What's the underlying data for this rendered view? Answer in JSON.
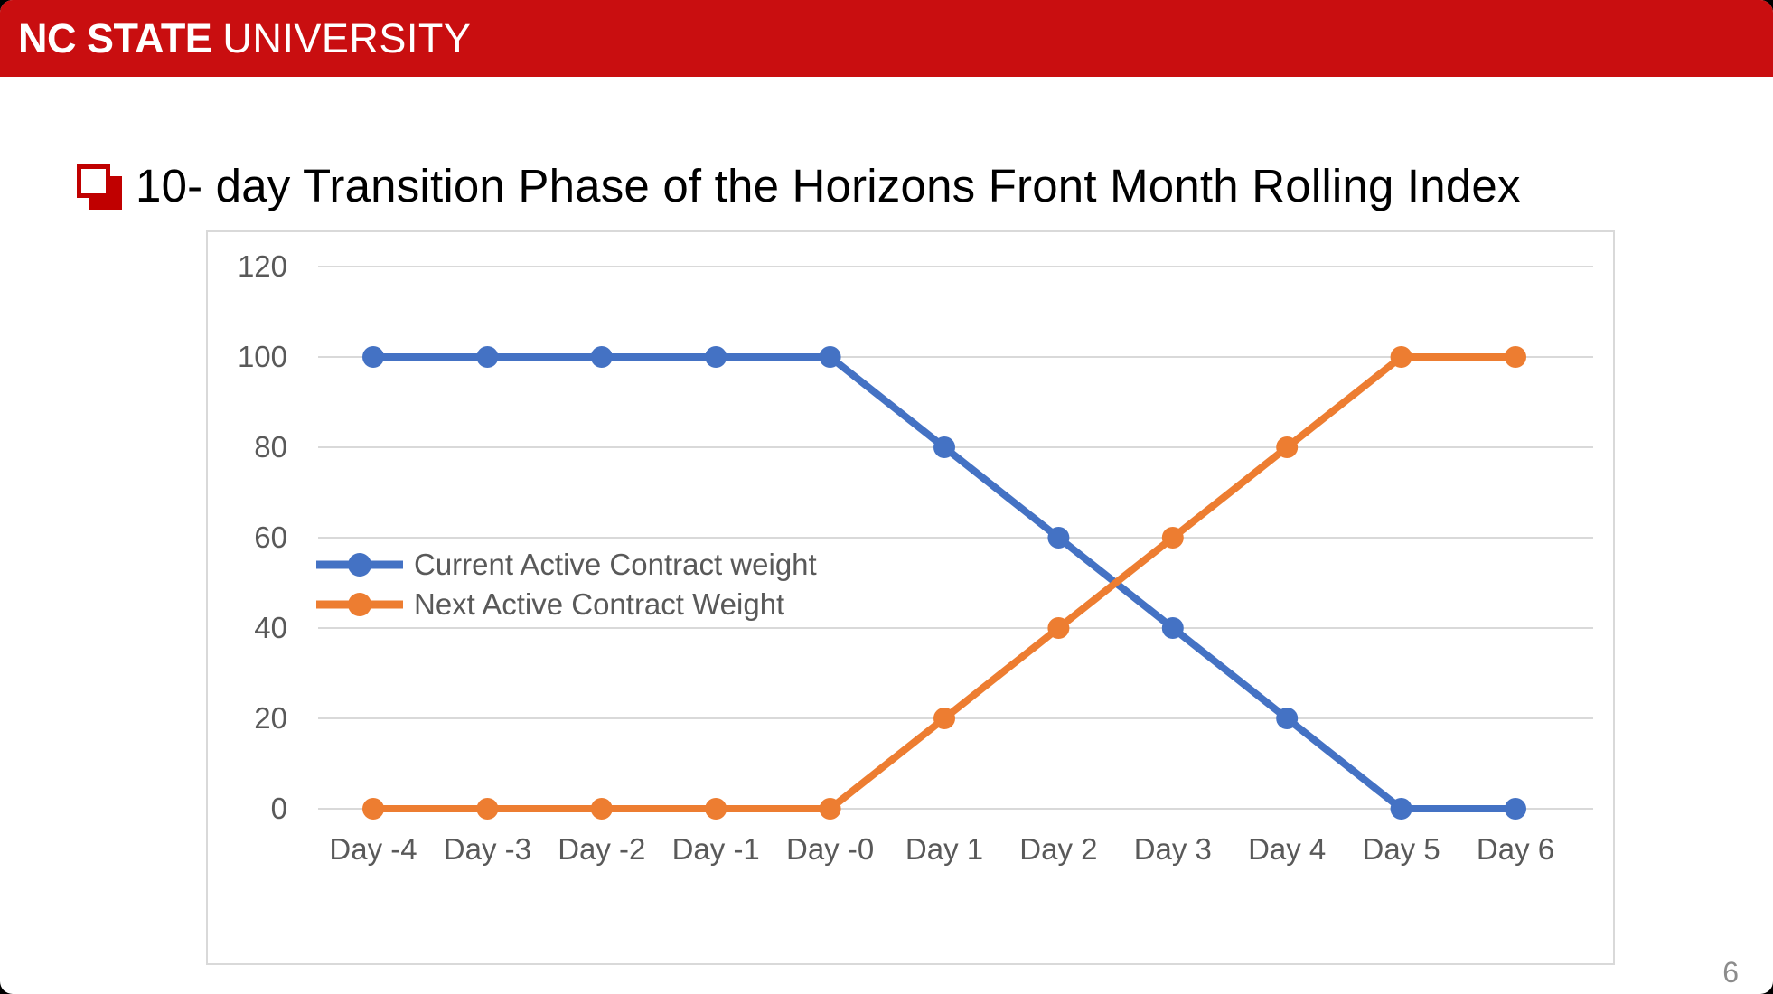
{
  "header": {
    "brand_primary": "NC STATE",
    "brand_secondary": "UNIVERSITY",
    "bar_color": "#c90e10",
    "text_color": "#ffffff"
  },
  "title": {
    "text": "10- day Transition Phase of the Horizons Front Month Rolling Index",
    "bullet_color": "#c00000"
  },
  "footer": {
    "page_number": "6"
  },
  "chart_data": {
    "type": "line",
    "title": "",
    "categories": [
      "Day -4",
      "Day -3",
      "Day -2",
      "Day -1",
      "Day -0",
      "Day 1",
      "Day 2",
      "Day 3",
      "Day 4",
      "Day 5",
      "Day 6"
    ],
    "series": [
      {
        "name": "Current Active Contract weight",
        "color": "#4472C4",
        "values": [
          100,
          100,
          100,
          100,
          100,
          80,
          60,
          40,
          20,
          0,
          0
        ]
      },
      {
        "name": "Next Active Contract Weight",
        "color": "#ED7D31",
        "values": [
          0,
          0,
          0,
          0,
          0,
          20,
          40,
          60,
          80,
          100,
          100
        ]
      }
    ],
    "xlabel": "",
    "ylabel": "",
    "ylim": [
      0,
      120
    ],
    "yticks": [
      0,
      20,
      40,
      60,
      80,
      100,
      120
    ],
    "grid": true,
    "gridline_color": "#d9d9d9",
    "axis_text_color": "#595959",
    "legend_position": "inside-left",
    "marker": "circle"
  }
}
